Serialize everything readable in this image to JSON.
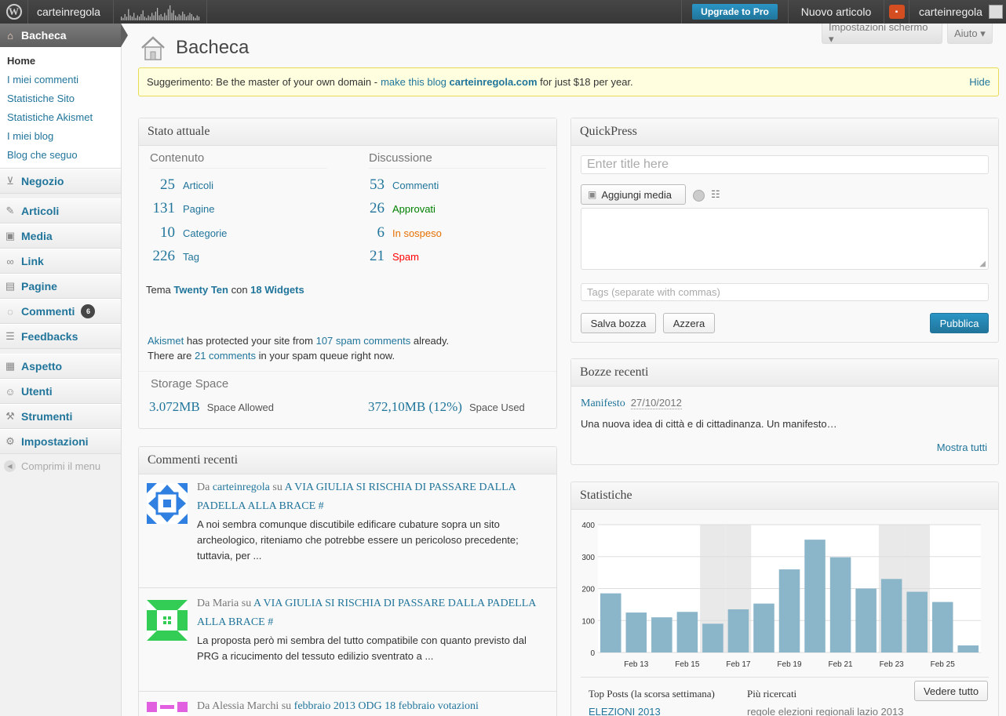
{
  "adminbar": {
    "site_name": "carteinregola",
    "upgrade_label": "Upgrade to Pro",
    "new_post_label": "Nuovo articolo",
    "account_name": "carteinregola"
  },
  "screen_options": {
    "screen_label": "Impostazioni schermo ▾",
    "help_label": "Aiuto ▾"
  },
  "page_title": "Bacheca",
  "tip": {
    "prefix": "Suggerimento: Be the master of your own domain - ",
    "link_text": "make this blog",
    "domain": "carteinregola.com",
    "suffix": " for just $18 per year.",
    "hide_label": "Hide"
  },
  "sidebar": {
    "dashboard": "Bacheca",
    "submenu": [
      "Home",
      "I miei commenti",
      "Statistiche Sito",
      "Statistiche Akismet",
      "I miei blog",
      "Blog che seguo"
    ],
    "items": {
      "negozio": "Negozio",
      "articoli": "Articoli",
      "media": "Media",
      "link": "Link",
      "pagine": "Pagine",
      "commenti": "Commenti",
      "commenti_badge": "6",
      "feedbacks": "Feedbacks",
      "aspetto": "Aspetto",
      "utenti": "Utenti",
      "strumenti": "Strumenti",
      "impostazioni": "Impostazioni"
    },
    "collapse": "Comprimi il menu"
  },
  "stato": {
    "title": "Stato attuale",
    "contenuto_header": "Contenuto",
    "discussione_header": "Discussione",
    "contenuto": [
      {
        "num": "25",
        "label": "Articoli"
      },
      {
        "num": "131",
        "label": "Pagine"
      },
      {
        "num": "10",
        "label": "Categorie"
      },
      {
        "num": "226",
        "label": "Tag"
      }
    ],
    "discussione": [
      {
        "num": "53",
        "label": "Commenti",
        "color": "#21759b"
      },
      {
        "num": "26",
        "label": "Approvati",
        "color": "#008000"
      },
      {
        "num": "6",
        "label": "In sospeso",
        "color": "#e66f00"
      },
      {
        "num": "21",
        "label": "Spam",
        "color": "#ff0000"
      }
    ],
    "theme_prefix": "Tema ",
    "theme_name": "Twenty Ten",
    "theme_mid": " con ",
    "widgets": "18 Widgets",
    "akismet_name": "Akismet",
    "akismet_mid": " has protected your site from ",
    "akismet_spam": "107 spam comments",
    "akismet_end": " already.",
    "queue_prefix": "There are ",
    "queue_link": "21 comments",
    "queue_end": " in your spam queue right now.",
    "storage_title": "Storage Space",
    "allowed_num": "3.072MB",
    "allowed_label": "Space Allowed",
    "used_num": "372,10MB (12%)",
    "used_label": "Space Used"
  },
  "commenti_recenti": {
    "title": "Commenti recenti",
    "items": [
      {
        "da": "Da ",
        "author": "carteinregola",
        "su": " su ",
        "post": "A VIA GIULIA SI RISCHIA DI PASSARE DALLA PADELLA ALLA BRACE #",
        "excerpt": "A noi sembra comunque discutibile edificare cubature sopra un sito archeologico, riteniamo che potrebbe essere un pericoloso precedente; tuttavia, per ..."
      },
      {
        "da": "Da ",
        "author": "Maria",
        "su": " su ",
        "post": "A VIA GIULIA SI RISCHIA DI PASSARE DALLA PADELLA ALLA BRACE #",
        "excerpt": "La proposta però mi sembra del tutto compatibile con quanto previsto dal PRG a ricucimento del tessuto edilizio sventrato a ..."
      },
      {
        "da": "Da ",
        "author": "Alessia Marchi",
        "su": " su ",
        "post": "febbraio 2013 ODG 18 febbraio votazioni",
        "excerpt": ""
      }
    ]
  },
  "quickpress": {
    "title": "QuickPress",
    "title_placeholder": "Enter title here",
    "add_media": "Aggiungi media",
    "tags_placeholder": "Tags (separate with commas)",
    "save_draft": "Salva bozza",
    "reset": "Azzera",
    "publish": "Pubblica"
  },
  "bozze": {
    "title": "Bozze recenti",
    "draft_title": "Manifesto",
    "draft_date": "27/10/2012",
    "draft_excerpt": "Una nuova idea di città e di cittadinanza. Un manifesto…",
    "view_all": "Mostra tutti"
  },
  "statistiche": {
    "title": "Statistiche",
    "view_all": "Vedere tutto",
    "top_posts_label": "Top Posts (la scorsa settimana)",
    "top_post_1": "ELEZIONI 2013",
    "searches_label": "Più ricercati",
    "search_1": "regole elezioni regionali lazio 2013"
  },
  "chart_data": {
    "type": "bar",
    "categories": [
      "Feb 12",
      "Feb 13",
      "Feb 14",
      "Feb 15",
      "Feb 16",
      "Feb 17",
      "Feb 18",
      "Feb 19",
      "Feb 20",
      "Feb 21",
      "Feb 22",
      "Feb 23",
      "Feb 24",
      "Feb 25",
      "Feb 26"
    ],
    "tick_labels": [
      "Feb 13",
      "Feb 15",
      "Feb 17",
      "Feb 19",
      "Feb 21",
      "Feb 23",
      "Feb 25"
    ],
    "values": [
      185,
      125,
      110,
      127,
      90,
      135,
      153,
      260,
      353,
      298,
      200,
      230,
      190,
      158,
      22
    ],
    "weekend_categories": [
      "Feb 16",
      "Feb 17",
      "Feb 23",
      "Feb 24"
    ],
    "ylim": [
      0,
      400
    ],
    "yticks": [
      0,
      100,
      200,
      300,
      400
    ],
    "bar_color": "#8bb5c9",
    "grid": true
  }
}
